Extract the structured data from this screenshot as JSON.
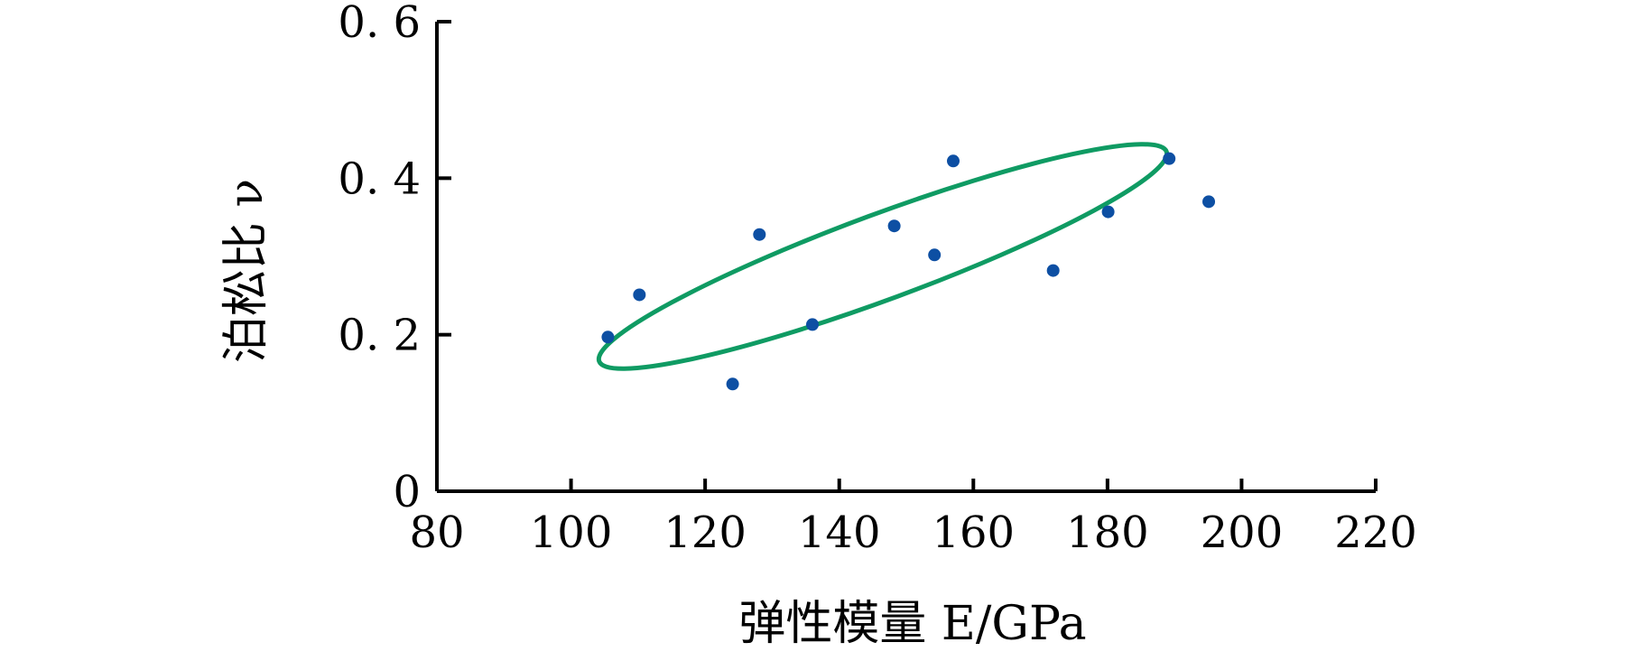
{
  "chart_data": {
    "type": "scatter",
    "title": "",
    "xlabel": "弹性模量 E/GPa",
    "ylabel": "泊松比 ν",
    "xlim": [
      80,
      220
    ],
    "ylim": [
      0,
      0.6
    ],
    "x_ticks": [
      80,
      100,
      120,
      140,
      160,
      180,
      200,
      220
    ],
    "x_tick_labels": [
      "80",
      "100",
      "120",
      "140",
      "160",
      "180",
      "200",
      "220"
    ],
    "y_ticks": [
      0,
      0.2,
      0.4,
      0.6
    ],
    "y_tick_labels": [
      "0",
      "0. 2",
      "0. 4",
      "0. 6"
    ],
    "grid": false,
    "point_color": "#0d4fa3",
    "ellipse_color": "#0f9b63",
    "series": [
      {
        "points": [
          {
            "x": 105.5,
            "y": 0.197
          },
          {
            "x": 110.2,
            "y": 0.251
          },
          {
            "x": 124.1,
            "y": 0.137
          },
          {
            "x": 128.1,
            "y": 0.328
          },
          {
            "x": 136.0,
            "y": 0.213
          },
          {
            "x": 148.2,
            "y": 0.339
          },
          {
            "x": 154.2,
            "y": 0.302
          },
          {
            "x": 157.0,
            "y": 0.422
          },
          {
            "x": 171.9,
            "y": 0.282
          },
          {
            "x": 180.1,
            "y": 0.357
          },
          {
            "x": 189.2,
            "y": 0.425
          },
          {
            "x": 195.1,
            "y": 0.37
          }
        ]
      }
    ],
    "annotations": [
      {
        "type": "ellipse",
        "center_x": 146.5,
        "center_y": 0.3,
        "major_half_x": 42.3,
        "major_half_y": 0.134,
        "minor_half": 0.058
      }
    ]
  }
}
